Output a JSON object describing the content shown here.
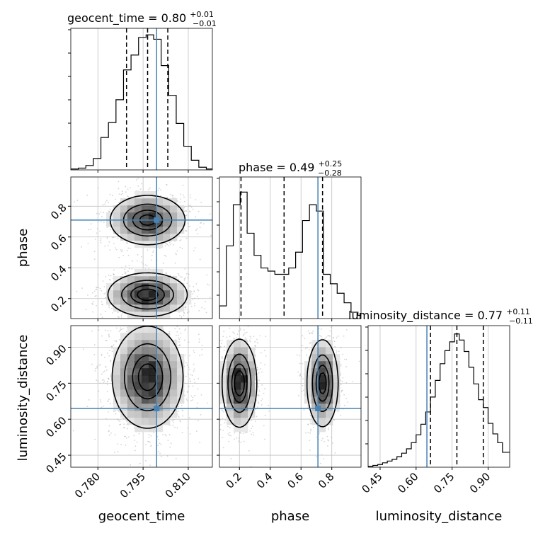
{
  "colors": {
    "truth": "#4682b4",
    "hist": "#000000",
    "grid": "#c0c0c0",
    "density_scale": [
      "#ffffff",
      "#000000"
    ],
    "sample_points": "#b0b0b0"
  },
  "chart_data": {
    "type": "corner",
    "grid": true,
    "parameters": [
      {
        "key": "geocent_time",
        "label": "geocent_time",
        "range": [
          0.771,
          0.818
        ]
      },
      {
        "key": "phase",
        "label": "phase",
        "range": [
          0.07,
          0.99
        ]
      },
      {
        "key": "luminosity_distance",
        "label": "luminosity_distance",
        "range": [
          0.4,
          0.99
        ]
      }
    ],
    "truths": {
      "geocent_time": 0.7995,
      "phase": 0.71,
      "luminosity_distance": 0.645
    },
    "titles": [
      {
        "param": "geocent_time",
        "text": "geocent_time = 0.80",
        "plus": "+0.01",
        "minus": "−0.01"
      },
      {
        "param": "phase",
        "text": "phase = 0.49",
        "plus": "+0.25",
        "minus": "−0.28"
      },
      {
        "param": "luminosity_distance",
        "text": "luminosity_distance = 0.77",
        "plus": "+0.11",
        "minus": "−0.11"
      }
    ],
    "ticks": {
      "geocent_time": {
        "values": [
          0.78,
          0.795,
          0.81
        ],
        "labels": [
          "0.780",
          "0.795",
          "0.810"
        ]
      },
      "phase": {
        "values": [
          0.2,
          0.4,
          0.6,
          0.8
        ],
        "labels": [
          "0.2",
          "0.4",
          "0.6",
          "0.8"
        ]
      },
      "luminosity_distance": {
        "values": [
          0.45,
          0.6,
          0.75,
          0.9
        ],
        "labels": [
          "0.45",
          "0.60",
          "0.75",
          "0.90"
        ]
      }
    },
    "histograms": [
      {
        "param": "geocent_time",
        "edges": [
          0.771,
          0.7735,
          0.776,
          0.7785,
          0.781,
          0.7835,
          0.786,
          0.7885,
          0.791,
          0.7935,
          0.796,
          0.7985,
          0.801,
          0.8035,
          0.806,
          0.8085,
          0.811,
          0.8135,
          0.816,
          0.818
        ],
        "counts": [
          1,
          2,
          5,
          13,
          37,
          54,
          80,
          114,
          131,
          151,
          154,
          149,
          119,
          85,
          53,
          27,
          11,
          3,
          1
        ],
        "ymax": 155,
        "quantiles": [
          0.7895,
          0.7965,
          0.8032
        ]
      },
      {
        "param": "phase",
        "edges": [
          0.07,
          0.115,
          0.16,
          0.205,
          0.25,
          0.295,
          0.34,
          0.385,
          0.43,
          0.475,
          0.52,
          0.565,
          0.61,
          0.655,
          0.7,
          0.745,
          0.79,
          0.835,
          0.88,
          0.925,
          0.97,
          0.99
        ],
        "counts": [
          4,
          23,
          36,
          40,
          27,
          20,
          16,
          15,
          14,
          14,
          16,
          21,
          31,
          36,
          34,
          14,
          11,
          8,
          5,
          2,
          1
        ],
        "ymax": 43,
        "quantiles": [
          0.21,
          0.49,
          0.74
        ]
      },
      {
        "param": "luminosity_distance",
        "edges": [
          0.4,
          0.42,
          0.44,
          0.46,
          0.48,
          0.5,
          0.52,
          0.54,
          0.56,
          0.58,
          0.6,
          0.62,
          0.64,
          0.66,
          0.68,
          0.7,
          0.72,
          0.74,
          0.76,
          0.78,
          0.8,
          0.82,
          0.84,
          0.86,
          0.88,
          0.9,
          0.92,
          0.94,
          0.96,
          0.99
        ],
        "counts": [
          1,
          2,
          3,
          5,
          7,
          9,
          12,
          16,
          21,
          28,
          37,
          49,
          63,
          80,
          99,
          118,
          133,
          143,
          152,
          145,
          132,
          114,
          95,
          77,
          68,
          50,
          38,
          28,
          17
        ],
        "ymax": 155,
        "quantiles": [
          0.66,
          0.77,
          0.88
        ]
      }
    ],
    "joint": [
      {
        "x": "geocent_time",
        "y": "phase",
        "modes": [
          {
            "mx": 0.7965,
            "my": 0.71,
            "sx": 0.0062,
            "sy": 0.08,
            "w": 1.0
          },
          {
            "mx": 0.7965,
            "my": 0.225,
            "sx": 0.0065,
            "sy": 0.07,
            "w": 1.05
          }
        ],
        "levels": [
          0.13,
          0.42,
          0.7,
          0.88
        ]
      },
      {
        "x": "geocent_time",
        "y": "luminosity_distance",
        "modes": [
          {
            "mx": 0.7965,
            "my": 0.775,
            "sx": 0.0058,
            "sy": 0.105,
            "w": 1.0
          }
        ],
        "levels": [
          0.13,
          0.42,
          0.7,
          0.88
        ]
      },
      {
        "x": "phase",
        "y": "luminosity_distance",
        "modes": [
          {
            "mx": 0.2,
            "my": 0.75,
            "sx": 0.055,
            "sy": 0.09,
            "w": 1.0
          },
          {
            "mx": 0.74,
            "my": 0.75,
            "sx": 0.05,
            "sy": 0.09,
            "w": 0.95
          }
        ],
        "levels": [
          0.13,
          0.42,
          0.7,
          0.88
        ]
      }
    ]
  }
}
